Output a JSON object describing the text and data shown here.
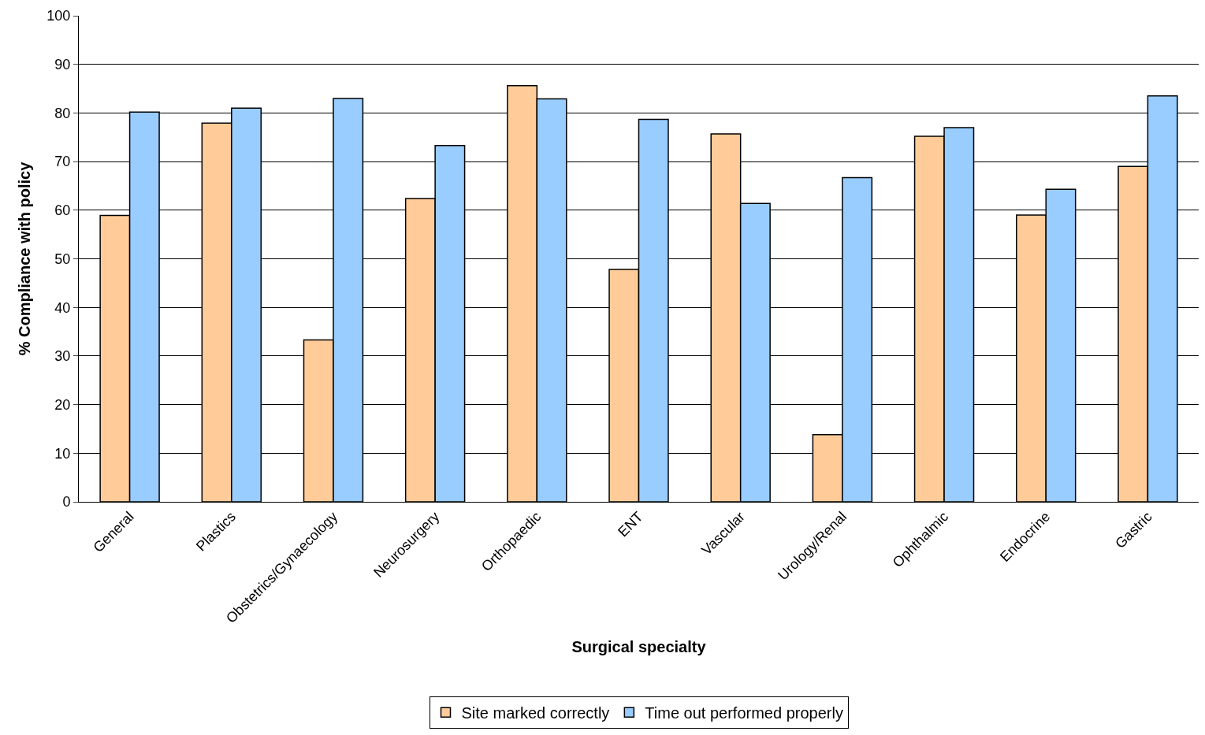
{
  "chart_data": {
    "type": "bar",
    "xlabel": "Surgical specialty",
    "ylabel": "% Compliance with policy",
    "categories": [
      "General",
      "Plastics",
      "Obstetrics/Gynaecology",
      "Neurosurgery",
      "Orthopaedic",
      "ENT",
      "Vascular",
      "Urology/Renal",
      "Ophthalmic",
      "Endocrine",
      "Gastric"
    ],
    "series": [
      {
        "name": "Site marked correctly",
        "color": "#ffcc99",
        "values": [
          58.9,
          77.9,
          33.3,
          62.4,
          85.6,
          47.8,
          75.7,
          13.8,
          75.2,
          59.0,
          69.0
        ]
      },
      {
        "name": "Time out performed properly",
        "color": "#99ccff",
        "values": [
          80.2,
          81.0,
          83.0,
          73.3,
          82.9,
          78.7,
          61.4,
          66.7,
          77.0,
          64.3,
          83.5
        ]
      }
    ],
    "ylim": [
      0,
      100
    ],
    "yticks": [
      0,
      10,
      20,
      30,
      40,
      50,
      60,
      70,
      80,
      90,
      100
    ],
    "grid": "y",
    "legend": "bottom"
  }
}
